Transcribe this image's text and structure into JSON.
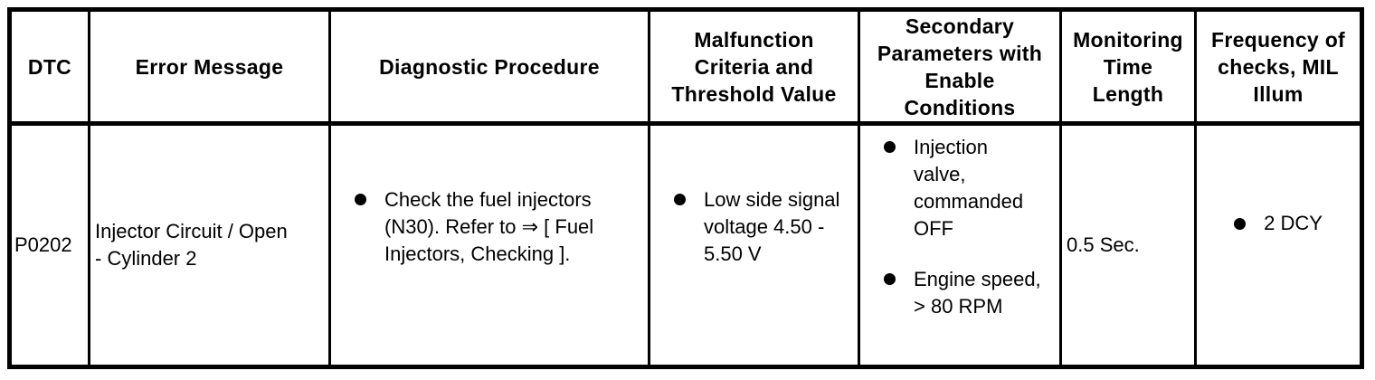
{
  "table": {
    "headers": {
      "dtc": "DTC",
      "error_message": "Error Message",
      "diagnostic_procedure": "Diagnostic Procedure",
      "malfunction_criteria": "Malfunction\nCriteria and\nThreshold Value",
      "secondary_parameters": "Secondary\nParameters with\nEnable\nConditions",
      "monitoring_time": "Monitoring\nTime\nLength",
      "frequency": "Frequency of\nchecks, MIL\nIllum"
    },
    "row": {
      "dtc": "P0202",
      "error_message": "Injector Circuit / Open\n- Cylinder 2",
      "diagnostic_procedure_items": [
        "Check the fuel injectors\n(N30). Refer to ⇒ [ Fuel\nInjectors, Checking ]."
      ],
      "malfunction_criteria_items": [
        "Low side signal\nvoltage 4.50 -\n5.50 V"
      ],
      "secondary_parameter_items": [
        "Injection\nvalve,\ncommanded\nOFF",
        "Engine speed,\n> 80 RPM"
      ],
      "monitoring_time": "0.5 Sec.",
      "frequency_items": [
        "2 DCY"
      ]
    }
  }
}
